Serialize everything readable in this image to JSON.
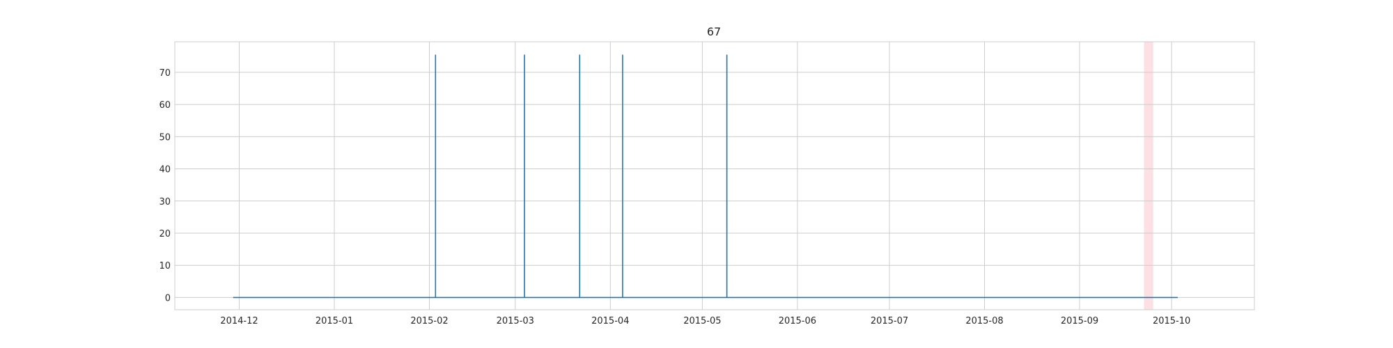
{
  "chart_data": {
    "type": "line",
    "title": "67",
    "xlabel": "",
    "ylabel": "",
    "grid": true,
    "x_axis": "date",
    "xlim": [
      "2014-11-10",
      "2015-10-28"
    ],
    "ylim": [
      -3.8,
      79.5
    ],
    "x_ticks": [
      "2014-12",
      "2015-01",
      "2015-02",
      "2015-03",
      "2015-04",
      "2015-05",
      "2015-06",
      "2015-07",
      "2015-08",
      "2015-09",
      "2015-10"
    ],
    "x_tick_dates": [
      "2014-12-01",
      "2015-01-01",
      "2015-02-01",
      "2015-03-01",
      "2015-04-01",
      "2015-05-01",
      "2015-06-01",
      "2015-07-01",
      "2015-08-01",
      "2015-09-01",
      "2015-10-01"
    ],
    "y_ticks": [
      0,
      10,
      20,
      30,
      40,
      50,
      60,
      70
    ],
    "series": [
      {
        "color": "#1f77b4",
        "x": [
          "2014-11-29",
          "2015-02-03",
          "2015-02-03",
          "2015-02-03",
          "2015-03-04",
          "2015-03-04",
          "2015-03-04",
          "2015-03-22",
          "2015-03-22",
          "2015-03-22",
          "2015-04-05",
          "2015-04-05",
          "2015-04-05",
          "2015-05-09",
          "2015-05-09",
          "2015-05-09",
          "2015-10-03"
        ],
        "y": [
          0,
          0,
          75.5,
          0,
          0,
          75.5,
          0,
          0,
          75.5,
          0,
          0,
          75.5,
          0,
          0,
          75.5,
          0,
          0
        ]
      }
    ],
    "shaded_regions": [
      {
        "start": "2015-09-22",
        "end": "2015-09-25",
        "color": "#fde0e3"
      }
    ]
  }
}
